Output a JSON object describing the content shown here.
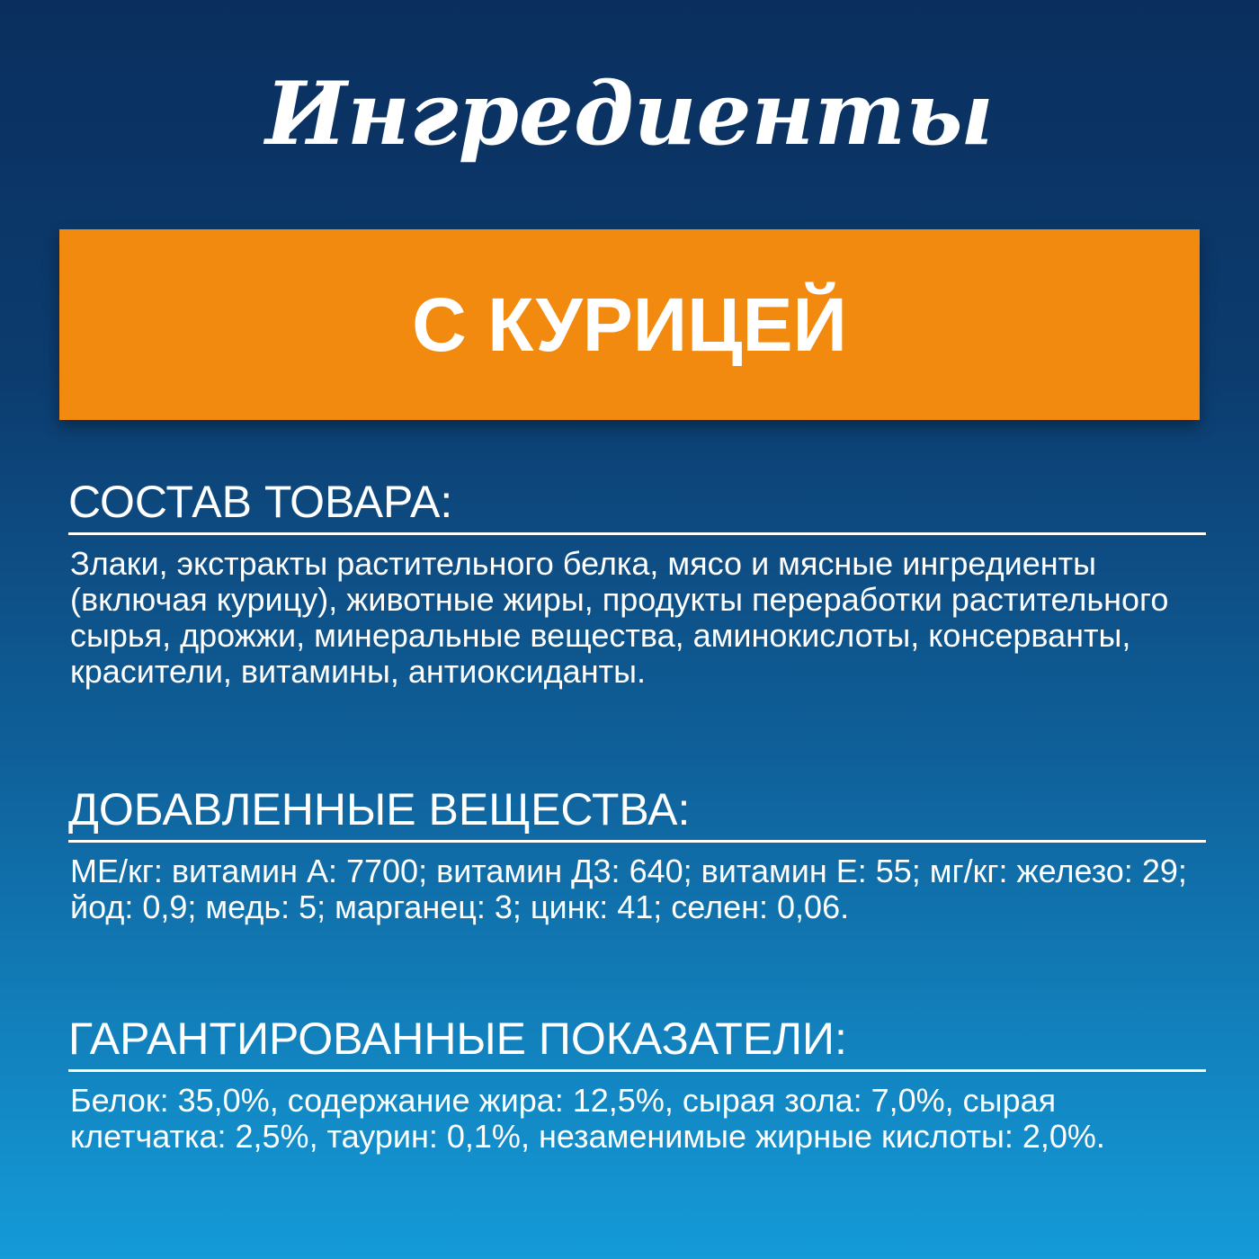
{
  "header": {
    "title": "Ингредиенты",
    "banner": "С КУРИЦЕЙ"
  },
  "sections": [
    {
      "heading": "СОСТАВ ТОВАРА:",
      "text": "Злаки, экстракты растительного белка, мясо и мясные ингредиенты (включая курицу), животные жиры, продукты переработки растительного сырья, дрожжи, минеральные вещества, аминокислоты, консерванты, красители, витамины, антиоксиданты."
    },
    {
      "heading": "ДОБАВЛЕННЫЕ ВЕЩЕСТВА:",
      "text": "МЕ/кг: витамин А: 7700; витамин Д3: 640; витамин Е: 55; мг/кг: железо: 29; йод: 0,9; медь: 5; марганец: 3; цинк: 41; селен: 0,06."
    },
    {
      "heading": "ГАРАНТИРОВАННЫЕ ПОКАЗАТЕЛИ:",
      "text": "Белок: 35,0%, содержание жира: 12,5%, сырая зола: 7,0%, сырая клетчатка: 2,5%, таурин: 0,1%, незаменимые жирные кислоты: 2,0%."
    }
  ]
}
